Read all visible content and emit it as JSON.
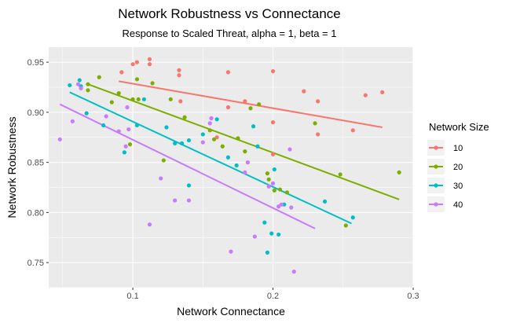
{
  "chart_data": {
    "type": "scatter",
    "title": "Network Robustness vs Connectance",
    "subtitle": "Response to Scaled Threat, alpha = 1, beta = 1",
    "xlabel": "Network Connectance",
    "ylabel": "Network Robustness",
    "xlim": [
      0.04,
      0.3
    ],
    "ylim": [
      0.725,
      0.965
    ],
    "x_ticks": [
      0.1,
      0.2,
      0.3
    ],
    "x_tick_labels": [
      "0.1",
      "0.2",
      "0.3"
    ],
    "y_ticks": [
      0.75,
      0.8,
      0.85,
      0.9,
      0.95
    ],
    "y_tick_labels": [
      "0.75",
      "0.80",
      "0.85",
      "0.90",
      "0.95"
    ],
    "grid": true,
    "background_color": "#EBEBEB",
    "legend": {
      "title": "Network Size",
      "position": "right"
    },
    "series": [
      {
        "name": "10",
        "color": "#F8766D",
        "trend": [
          [
            0.09,
            0.931
          ],
          [
            0.278,
            0.885
          ]
        ],
        "points": [
          [
            0.092,
            0.94
          ],
          [
            0.1,
            0.948
          ],
          [
            0.103,
            0.95
          ],
          [
            0.112,
            0.953
          ],
          [
            0.112,
            0.948
          ],
          [
            0.133,
            0.942
          ],
          [
            0.133,
            0.937
          ],
          [
            0.134,
            0.911
          ],
          [
            0.16,
            0.875
          ],
          [
            0.168,
            0.94
          ],
          [
            0.168,
            0.905
          ],
          [
            0.18,
            0.911
          ],
          [
            0.2,
            0.941
          ],
          [
            0.2,
            0.89
          ],
          [
            0.2,
            0.858
          ],
          [
            0.222,
            0.921
          ],
          [
            0.232,
            0.911
          ],
          [
            0.232,
            0.878
          ],
          [
            0.266,
            0.917
          ],
          [
            0.278,
            0.92
          ],
          [
            0.257,
            0.882
          ]
        ]
      },
      {
        "name": "20",
        "color": "#7CAE00",
        "trend": [
          [
            0.068,
            0.928
          ],
          [
            0.29,
            0.813
          ]
        ],
        "points": [
          [
            0.068,
            0.928
          ],
          [
            0.068,
            0.922
          ],
          [
            0.076,
            0.935
          ],
          [
            0.085,
            0.91
          ],
          [
            0.09,
            0.919
          ],
          [
            0.098,
            0.868
          ],
          [
            0.1,
            0.913
          ],
          [
            0.103,
            0.933
          ],
          [
            0.104,
            0.913
          ],
          [
            0.114,
            0.929
          ],
          [
            0.122,
            0.852
          ],
          [
            0.127,
            0.913
          ],
          [
            0.137,
            0.895
          ],
          [
            0.155,
            0.882
          ],
          [
            0.158,
            0.873
          ],
          [
            0.164,
            0.866
          ],
          [
            0.175,
            0.874
          ],
          [
            0.18,
            0.861
          ],
          [
            0.184,
            0.904
          ],
          [
            0.19,
            0.908
          ],
          [
            0.196,
            0.839
          ],
          [
            0.197,
            0.833
          ],
          [
            0.201,
            0.822
          ],
          [
            0.205,
            0.823
          ],
          [
            0.21,
            0.82
          ],
          [
            0.23,
            0.889
          ],
          [
            0.248,
            0.838
          ],
          [
            0.252,
            0.787
          ],
          [
            0.29,
            0.84
          ]
        ]
      },
      {
        "name": "30",
        "color": "#00BFC4",
        "trend": [
          [
            0.055,
            0.92
          ],
          [
            0.256,
            0.789
          ]
        ],
        "points": [
          [
            0.055,
            0.927
          ],
          [
            0.062,
            0.932
          ],
          [
            0.063,
            0.926
          ],
          [
            0.067,
            0.899
          ],
          [
            0.079,
            0.887
          ],
          [
            0.094,
            0.86
          ],
          [
            0.103,
            0.887
          ],
          [
            0.108,
            0.913
          ],
          [
            0.124,
            0.885
          ],
          [
            0.13,
            0.869
          ],
          [
            0.135,
            0.869
          ],
          [
            0.14,
            0.872
          ],
          [
            0.14,
            0.827
          ],
          [
            0.15,
            0.878
          ],
          [
            0.16,
            0.893
          ],
          [
            0.168,
            0.855
          ],
          [
            0.174,
            0.847
          ],
          [
            0.186,
            0.886
          ],
          [
            0.189,
            0.866
          ],
          [
            0.194,
            0.79
          ],
          [
            0.196,
            0.76
          ],
          [
            0.199,
            0.779
          ],
          [
            0.201,
            0.843
          ],
          [
            0.204,
            0.778
          ],
          [
            0.208,
            0.808
          ],
          [
            0.237,
            0.811
          ],
          [
            0.257,
            0.795
          ]
        ]
      },
      {
        "name": "40",
        "color": "#C77CFF",
        "trend": [
          [
            0.048,
            0.908
          ],
          [
            0.23,
            0.784
          ]
        ],
        "points": [
          [
            0.048,
            0.873
          ],
          [
            0.057,
            0.891
          ],
          [
            0.061,
            0.928
          ],
          [
            0.063,
            0.924
          ],
          [
            0.081,
            0.896
          ],
          [
            0.09,
            0.881
          ],
          [
            0.095,
            0.866
          ],
          [
            0.096,
            0.905
          ],
          [
            0.097,
            0.883
          ],
          [
            0.112,
            0.788
          ],
          [
            0.12,
            0.834
          ],
          [
            0.13,
            0.812
          ],
          [
            0.14,
            0.812
          ],
          [
            0.15,
            0.87
          ],
          [
            0.155,
            0.889
          ],
          [
            0.156,
            0.894
          ],
          [
            0.17,
            0.761
          ],
          [
            0.18,
            0.84
          ],
          [
            0.182,
            0.85
          ],
          [
            0.187,
            0.776
          ],
          [
            0.197,
            0.826
          ],
          [
            0.2,
            0.829
          ],
          [
            0.204,
            0.806
          ],
          [
            0.206,
            0.808
          ],
          [
            0.212,
            0.863
          ],
          [
            0.213,
            0.805
          ],
          [
            0.215,
            0.741
          ]
        ]
      }
    ]
  }
}
